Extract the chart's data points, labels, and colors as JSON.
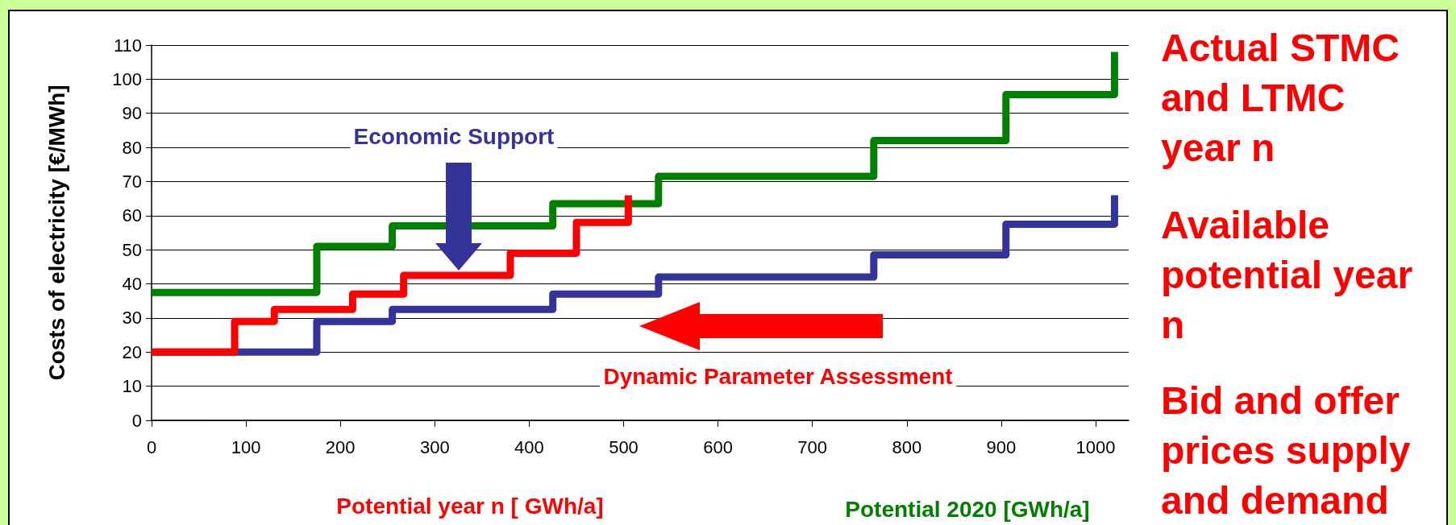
{
  "chart_data": {
    "type": "step",
    "xlabel": "Potential year n [ GWh/a]",
    "ylabel": "Costs of electricity [€/MWh]",
    "xlim": [
      0,
      1035
    ],
    "xticks": [
      0,
      100,
      200,
      300,
      400,
      500,
      600,
      700,
      800,
      900,
      1000
    ],
    "ylim": [
      0,
      110
    ],
    "yticks": [
      0,
      10,
      20,
      30,
      40,
      50,
      60,
      70,
      80,
      90,
      100,
      110
    ],
    "grid": "y",
    "line_style": "solid",
    "marker": "none",
    "series": [
      {
        "color": "#008000",
        "x": [
          0,
          175,
          255,
          425,
          537,
          765,
          905,
          1020
        ],
        "values": [
          37.5,
          51,
          57,
          63.5,
          71.5,
          82,
          95.5,
          108
        ]
      },
      {
        "color": "#333399",
        "x": [
          0,
          175,
          255,
          425,
          537,
          765,
          905,
          1020
        ],
        "values": [
          20,
          29,
          32.5,
          37,
          42,
          48.5,
          57.5,
          66
        ]
      },
      {
        "color": "#ff0000",
        "x": [
          0,
          88,
          130,
          213,
          267,
          380,
          450,
          505
        ],
        "values": [
          20,
          29,
          32.5,
          37,
          42.5,
          49,
          58,
          66
        ]
      }
    ],
    "annotations": [
      "Economic Support",
      "Dynamic Parameter Assessment",
      "Potential 2020 [GWh/a]",
      "Actual STMC and LTMC year n",
      "Available potential year n",
      "Bid and offer prices supply and demand"
    ]
  }
}
